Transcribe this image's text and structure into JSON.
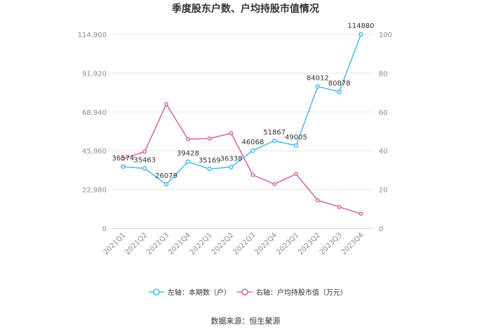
{
  "chart_data": {
    "type": "line",
    "title": "季度股东户数、户均持股市值情况",
    "categories": [
      "2021Q1",
      "2021Q2",
      "2021Q3",
      "2021Q4",
      "2022Q1",
      "2022Q2",
      "2022Q3",
      "2022Q4",
      "2023Q1",
      "2023Q2",
      "2023Q3",
      "2023Q4"
    ],
    "left_axis": {
      "ticks": [
        "0",
        "22,980",
        "45,960",
        "68,940",
        "91,920",
        "114,900"
      ],
      "ylim": [
        0,
        114900
      ]
    },
    "right_axis": {
      "ticks": [
        "0",
        "20",
        "40",
        "60",
        "80",
        "100"
      ],
      "ylim": [
        0,
        100
      ]
    },
    "series": [
      {
        "name": "左轴：本期数（户）",
        "axis": "left",
        "color": "#4db8ec",
        "values": [
          36574,
          35463,
          26079,
          39428,
          35169,
          36338,
          46068,
          51867,
          49005,
          84012,
          80878,
          114880
        ],
        "labels": [
          "36574",
          "35463",
          "26079",
          "39428",
          "35169",
          "36338",
          "46068",
          "51867",
          "49005",
          "84012",
          "80878",
          "114880"
        ]
      },
      {
        "name": "右轴：户均持股市值（万元）",
        "axis": "right",
        "color": "#d063a8",
        "values": [
          36,
          39.5,
          64,
          46,
          46.3,
          49,
          27.5,
          22.8,
          28,
          14.5,
          11,
          7.5
        ]
      }
    ],
    "grid": true,
    "legend_position": "bottom"
  },
  "footer": {
    "source": "数据来源：恒生聚源"
  }
}
